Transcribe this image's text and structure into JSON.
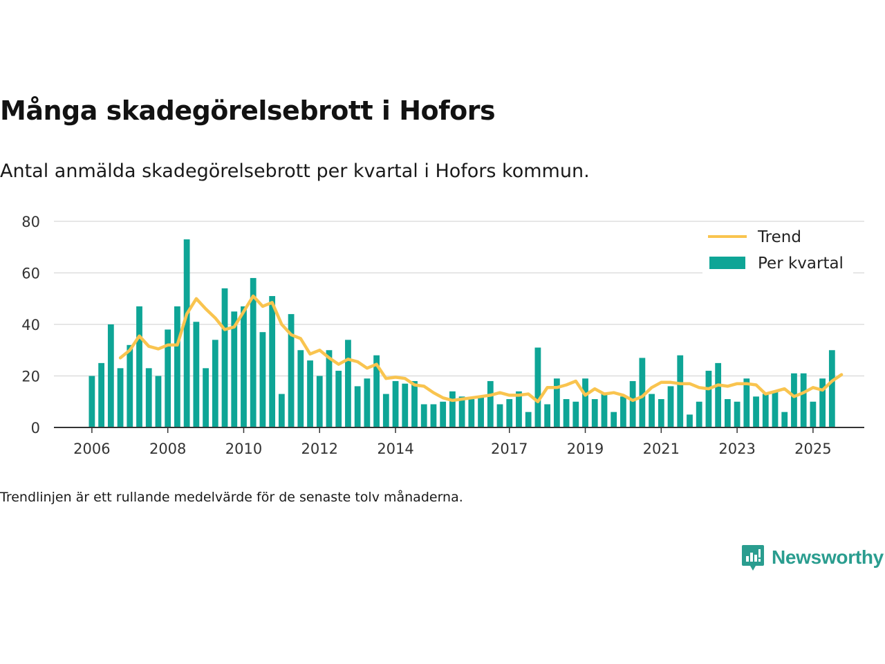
{
  "header": {
    "title": "Många skadegörelsebrott i Hofors",
    "subtitle": "Antal anmälda skadegörelsebrott per kvartal i Hofors kommun."
  },
  "footer": {
    "note": "Trendlinjen är ett rullande medelvärde för de senaste tolv månaderna.",
    "brand": "Newsworthy"
  },
  "colors": {
    "bar": "#0ea596",
    "trend": "#f9c44f",
    "grid": "#dddddd",
    "axis": "#333333"
  },
  "chart_data": {
    "type": "bar",
    "x_start": 2006.0,
    "x_step": 0.25,
    "xlim": [
      2005.0,
      2026.35
    ],
    "ylim": [
      0,
      80
    ],
    "yticks": [
      0,
      20,
      40,
      60,
      80
    ],
    "xticks": [
      2006,
      2008,
      2010,
      2012,
      2014,
      2017,
      2019,
      2021,
      2023,
      2025
    ],
    "xlabel": "",
    "ylabel": "",
    "legend_position": "top-right",
    "series": [
      {
        "name": "Per kvartal",
        "kind": "bar",
        "values": [
          20,
          25,
          40,
          23,
          32,
          47,
          23,
          20,
          38,
          47,
          73,
          41,
          23,
          34,
          54,
          45,
          47,
          58,
          37,
          51,
          13,
          44,
          30,
          26,
          20,
          30,
          22,
          34,
          16,
          19,
          28,
          13,
          18,
          17,
          18,
          9,
          9,
          10,
          14,
          12,
          11,
          12,
          18,
          9,
          11,
          14,
          6,
          31,
          9,
          19,
          11,
          10,
          19,
          11,
          13,
          6,
          12,
          18,
          27,
          13,
          11,
          16,
          28,
          5,
          10,
          22,
          25,
          11,
          10,
          19,
          12,
          13,
          14,
          6,
          21,
          21,
          10,
          19,
          30
        ]
      },
      {
        "name": "Trend",
        "kind": "line",
        "start_index": 3,
        "values": [
          27,
          30,
          35.5,
          31.5,
          30.5,
          32,
          32,
          44,
          50,
          46,
          42.5,
          38,
          39,
          45,
          51,
          47,
          48.5,
          40,
          36,
          34.5,
          28.5,
          30,
          27,
          24.5,
          26.5,
          25.5,
          23,
          24.5,
          19,
          19.5,
          19,
          16.5,
          16,
          13.5,
          11.5,
          10.5,
          11,
          11.5,
          12,
          12.5,
          13.5,
          12.5,
          12.5,
          13,
          10,
          15.5,
          15.5,
          16.5,
          18,
          12.5,
          15,
          13,
          13.5,
          12.5,
          10.5,
          12,
          15.5,
          17.5,
          17.5,
          17,
          17,
          15.5,
          15,
          16.5,
          16,
          17,
          17,
          16.5,
          13,
          14,
          15,
          12,
          13.5,
          15.5,
          14.5,
          18,
          20.5
        ]
      }
    ]
  }
}
